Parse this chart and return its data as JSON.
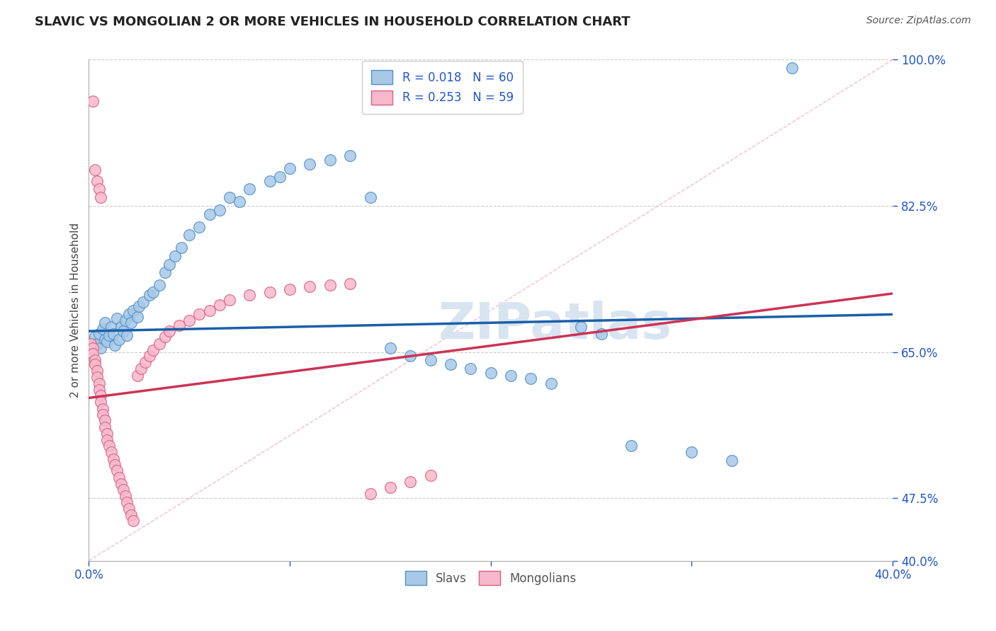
{
  "title": "SLAVIC VS MONGOLIAN 2 OR MORE VEHICLES IN HOUSEHOLD CORRELATION CHART",
  "source": "Source: ZipAtlas.com",
  "ylabel_text": "2 or more Vehicles in Household",
  "xmin": 0.0,
  "xmax": 0.4,
  "ymin": 0.4,
  "ymax": 1.0,
  "R_slavs": 0.018,
  "N_slavs": 60,
  "R_mongolians": 0.253,
  "N_mongolians": 59,
  "slavs_color": "#a8c8e8",
  "slavs_edge_color": "#5090c8",
  "mongolians_color": "#f8b8cc",
  "mongolians_edge_color": "#d86080",
  "slavs_line_color": "#1a5fa8",
  "mongolians_line_color": "#cc3355",
  "diagonal_color": "#f0a0b8",
  "grid_color": "#cccccc",
  "tick_color": "#2255cc",
  "title_color": "#222222",
  "source_color": "#555555",
  "watermark_color": "#d8e4f0",
  "slavs_x": [
    0.003,
    0.004,
    0.005,
    0.006,
    0.007,
    0.008,
    0.008,
    0.009,
    0.01,
    0.011,
    0.012,
    0.013,
    0.014,
    0.015,
    0.016,
    0.017,
    0.018,
    0.019,
    0.02,
    0.021,
    0.022,
    0.024,
    0.025,
    0.027,
    0.03,
    0.032,
    0.035,
    0.038,
    0.04,
    0.043,
    0.046,
    0.05,
    0.055,
    0.06,
    0.065,
    0.07,
    0.075,
    0.08,
    0.09,
    0.095,
    0.1,
    0.11,
    0.12,
    0.13,
    0.14,
    0.15,
    0.16,
    0.17,
    0.18,
    0.19,
    0.2,
    0.21,
    0.22,
    0.23,
    0.245,
    0.255,
    0.27,
    0.3,
    0.32,
    0.35
  ],
  "slavs_y": [
    0.668,
    0.66,
    0.672,
    0.655,
    0.678,
    0.665,
    0.685,
    0.662,
    0.67,
    0.68,
    0.672,
    0.658,
    0.69,
    0.665,
    0.68,
    0.675,
    0.688,
    0.67,
    0.695,
    0.685,
    0.7,
    0.692,
    0.705,
    0.71,
    0.718,
    0.722,
    0.73,
    0.745,
    0.755,
    0.765,
    0.775,
    0.79,
    0.8,
    0.815,
    0.82,
    0.835,
    0.83,
    0.845,
    0.855,
    0.86,
    0.87,
    0.875,
    0.88,
    0.885,
    0.835,
    0.655,
    0.645,
    0.64,
    0.635,
    0.63,
    0.625,
    0.622,
    0.618,
    0.612,
    0.68,
    0.672,
    0.538,
    0.53,
    0.52,
    0.99
  ],
  "mongolians_x": [
    0.001,
    0.002,
    0.002,
    0.003,
    0.003,
    0.004,
    0.004,
    0.005,
    0.005,
    0.006,
    0.006,
    0.007,
    0.007,
    0.008,
    0.008,
    0.009,
    0.009,
    0.01,
    0.011,
    0.012,
    0.013,
    0.014,
    0.015,
    0.016,
    0.017,
    0.018,
    0.019,
    0.02,
    0.021,
    0.022,
    0.024,
    0.026,
    0.028,
    0.03,
    0.032,
    0.035,
    0.038,
    0.04,
    0.045,
    0.05,
    0.055,
    0.06,
    0.065,
    0.07,
    0.08,
    0.09,
    0.1,
    0.11,
    0.12,
    0.13,
    0.14,
    0.15,
    0.16,
    0.17,
    0.002,
    0.003,
    0.004,
    0.005,
    0.006
  ],
  "mongolians_y": [
    0.66,
    0.655,
    0.648,
    0.64,
    0.635,
    0.628,
    0.62,
    0.612,
    0.605,
    0.598,
    0.59,
    0.582,
    0.575,
    0.568,
    0.56,
    0.552,
    0.545,
    0.538,
    0.53,
    0.522,
    0.515,
    0.508,
    0.5,
    0.492,
    0.485,
    0.478,
    0.47,
    0.462,
    0.455,
    0.448,
    0.622,
    0.63,
    0.638,
    0.645,
    0.652,
    0.66,
    0.668,
    0.675,
    0.682,
    0.688,
    0.695,
    0.7,
    0.706,
    0.712,
    0.718,
    0.722,
    0.725,
    0.728,
    0.73,
    0.732,
    0.48,
    0.488,
    0.495,
    0.502,
    0.95,
    0.868,
    0.855,
    0.845,
    0.835
  ]
}
